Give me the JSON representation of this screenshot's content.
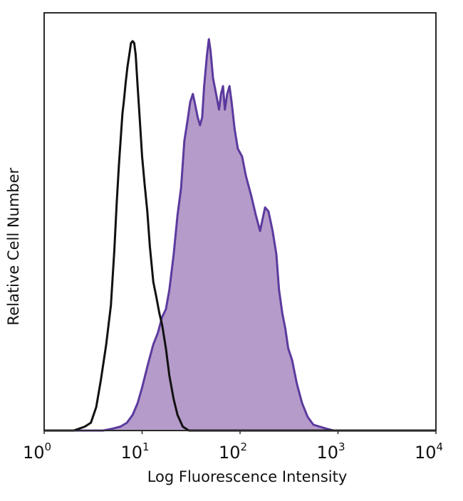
{
  "chart_data": {
    "type": "area",
    "xlabel": "Log Fluorescence Intensity",
    "ylabel": "Relative Cell Number",
    "x_scale": "log",
    "xlim": [
      1,
      10000
    ],
    "ylim": [
      0,
      1.0
    ],
    "x_ticks": [
      {
        "base": "10",
        "exp": "0",
        "value": 1
      },
      {
        "base": "10",
        "exp": "1",
        "value": 10
      },
      {
        "base": "10",
        "exp": "2",
        "value": 100
      },
      {
        "base": "10",
        "exp": "3",
        "value": 1000
      },
      {
        "base": "10",
        "exp": "4",
        "value": 10000
      }
    ],
    "grid": false,
    "legend": "none",
    "series": [
      {
        "style": "outline",
        "color": "#111111",
        "points": [
          [
            1.0,
            0.0
          ],
          [
            2.0,
            0.0
          ],
          [
            2.6,
            0.01
          ],
          [
            3.0,
            0.02
          ],
          [
            3.4,
            0.06
          ],
          [
            3.8,
            0.13
          ],
          [
            4.3,
            0.22
          ],
          [
            4.8,
            0.32
          ],
          [
            5.2,
            0.46
          ],
          [
            5.5,
            0.58
          ],
          [
            5.8,
            0.68
          ],
          [
            6.1,
            0.76
          ],
          [
            6.3,
            0.81
          ],
          [
            6.5,
            0.84
          ],
          [
            6.8,
            0.89
          ],
          [
            7.1,
            0.93
          ],
          [
            7.4,
            0.96
          ],
          [
            7.7,
            0.99
          ],
          [
            8.0,
            0.995
          ],
          [
            8.3,
            0.99
          ],
          [
            8.6,
            0.96
          ],
          [
            9.0,
            0.88
          ],
          [
            9.5,
            0.79
          ],
          [
            10.0,
            0.7
          ],
          [
            10.6,
            0.63
          ],
          [
            11.3,
            0.56
          ],
          [
            12.0,
            0.47
          ],
          [
            13.0,
            0.38
          ],
          [
            14.0,
            0.34
          ],
          [
            15.0,
            0.3
          ],
          [
            16.0,
            0.27
          ],
          [
            17.5,
            0.21
          ],
          [
            19.0,
            0.14
          ],
          [
            21.0,
            0.08
          ],
          [
            23.0,
            0.04
          ],
          [
            26.0,
            0.01
          ],
          [
            30.0,
            0.0
          ],
          [
            10000,
            0.0
          ]
        ]
      },
      {
        "style": "filled",
        "color": "#5b3a9e",
        "fill": "#b59bc9",
        "points": [
          [
            1.0,
            0.0
          ],
          [
            4.0,
            0.0
          ],
          [
            5.0,
            0.005
          ],
          [
            6.0,
            0.01
          ],
          [
            7.0,
            0.02
          ],
          [
            8.0,
            0.04
          ],
          [
            9.0,
            0.07
          ],
          [
            10.0,
            0.11
          ],
          [
            11.5,
            0.17
          ],
          [
            13.0,
            0.22
          ],
          [
            14.5,
            0.25
          ],
          [
            16.0,
            0.29
          ],
          [
            17.5,
            0.31
          ],
          [
            19.0,
            0.36
          ],
          [
            21.0,
            0.45
          ],
          [
            23.0,
            0.55
          ],
          [
            25.0,
            0.62
          ],
          [
            27.0,
            0.74
          ],
          [
            29.0,
            0.79
          ],
          [
            31.0,
            0.84
          ],
          [
            33.0,
            0.86
          ],
          [
            35.0,
            0.83
          ],
          [
            37.0,
            0.8
          ],
          [
            39.0,
            0.78
          ],
          [
            41.0,
            0.8
          ],
          [
            43.0,
            0.88
          ],
          [
            46.0,
            0.96
          ],
          [
            48.0,
            1.0
          ],
          [
            50.0,
            0.97
          ],
          [
            53.0,
            0.9
          ],
          [
            57.0,
            0.86
          ],
          [
            61.0,
            0.82
          ],
          [
            64.0,
            0.86
          ],
          [
            67.0,
            0.88
          ],
          [
            70.0,
            0.82
          ],
          [
            74.0,
            0.86
          ],
          [
            78.0,
            0.88
          ],
          [
            82.0,
            0.84
          ],
          [
            88.0,
            0.77
          ],
          [
            95.0,
            0.72
          ],
          [
            105.0,
            0.7
          ],
          [
            115.0,
            0.65
          ],
          [
            130.0,
            0.6
          ],
          [
            145.0,
            0.55
          ],
          [
            160.0,
            0.51
          ],
          [
            180.0,
            0.57
          ],
          [
            195.0,
            0.56
          ],
          [
            215.0,
            0.51
          ],
          [
            235.0,
            0.45
          ],
          [
            250.0,
            0.36
          ],
          [
            270.0,
            0.3
          ],
          [
            290.0,
            0.26
          ],
          [
            310.0,
            0.21
          ],
          [
            340.0,
            0.18
          ],
          [
            380.0,
            0.12
          ],
          [
            430.0,
            0.07
          ],
          [
            490.0,
            0.035
          ],
          [
            560.0,
            0.015
          ],
          [
            650.0,
            0.01
          ],
          [
            760.0,
            0.005
          ],
          [
            900.0,
            0.0
          ],
          [
            10000,
            0.0
          ]
        ]
      }
    ]
  }
}
